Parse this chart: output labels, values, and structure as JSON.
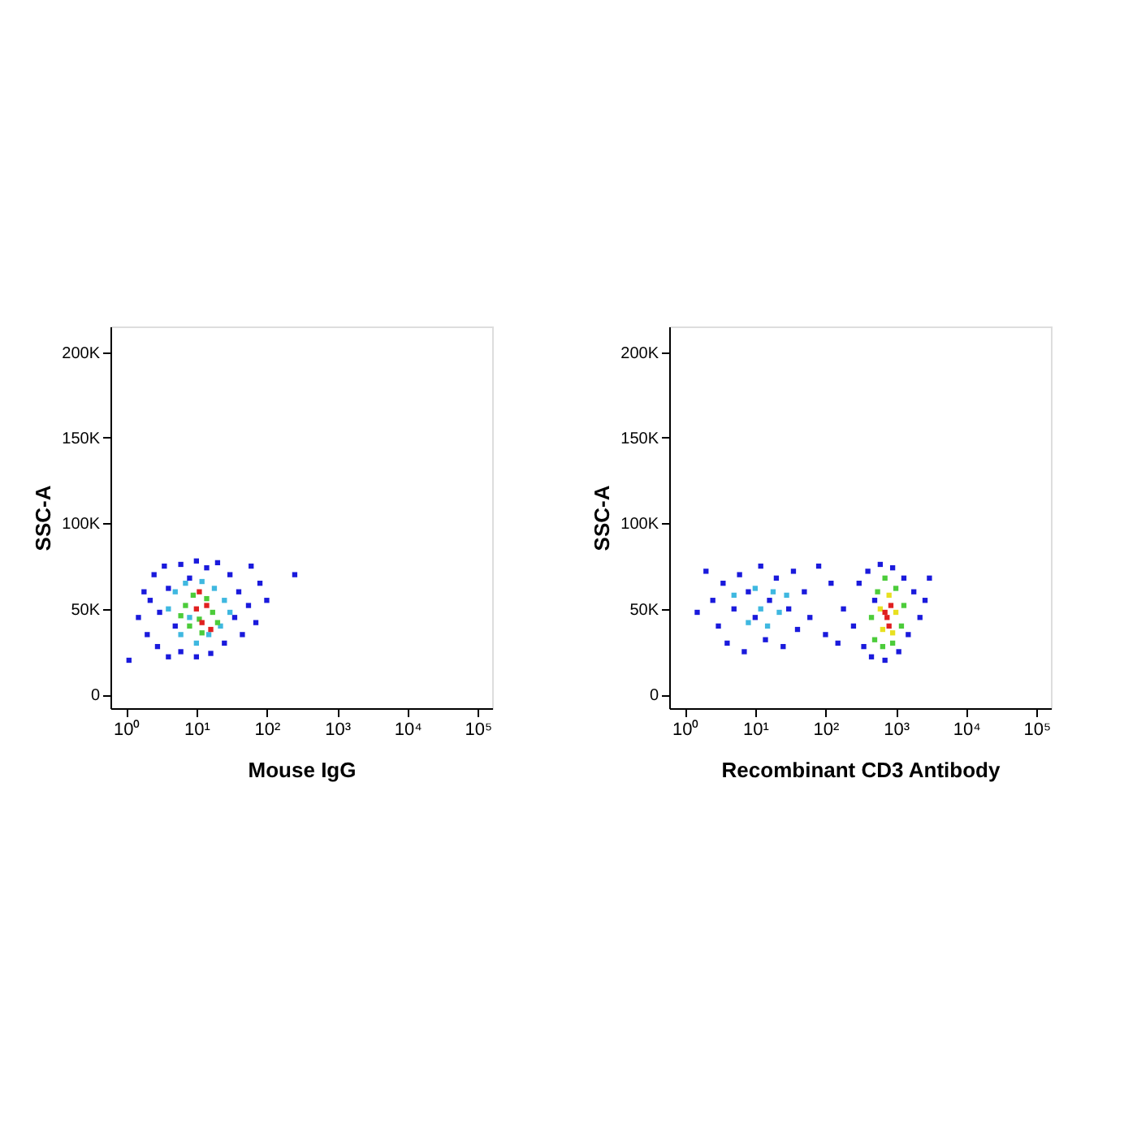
{
  "chart_data": [
    {
      "type": "scatter",
      "xlabel": "Mouse IgG",
      "ylabel": "SSC-A",
      "log": "x",
      "marker": "square",
      "grid": false,
      "xlim": [
        0.6,
        160000
      ],
      "ylim": [
        -8000,
        215000
      ],
      "xticks": [
        {
          "value": 1,
          "label": "10⁰"
        },
        {
          "value": 10,
          "label": "10¹"
        },
        {
          "value": 100,
          "label": "10²"
        },
        {
          "value": 1000,
          "label": "10³"
        },
        {
          "value": 10000,
          "label": "10⁴"
        },
        {
          "value": 100000,
          "label": "10⁵"
        }
      ],
      "yticks": [
        0,
        {
          "value": 50000,
          "label": "50K"
        },
        {
          "value": 100000,
          "label": "100K"
        },
        {
          "value": 150000,
          "label": "150K"
        },
        {
          "value": 200000,
          "label": "200K"
        }
      ],
      "series": [
        {
          "color": "#1a1adc",
          "x": [
            1.5,
            1.8,
            2,
            2.2,
            2.5,
            2.8,
            3,
            3.5,
            4,
            4,
            5,
            6,
            6,
            8,
            10,
            10,
            14,
            16,
            20,
            25,
            30,
            35,
            40,
            45,
            55,
            60,
            70,
            80,
            1.1,
            250,
            100
          ],
          "values": [
            45000,
            60000,
            35000,
            55000,
            70000,
            28000,
            48000,
            75000,
            22000,
            62000,
            40000,
            76000,
            25000,
            68000,
            78000,
            22000,
            74000,
            24000,
            77000,
            30000,
            70000,
            45000,
            60000,
            35000,
            52000,
            75000,
            42000,
            65000,
            20000,
            70000,
            55000
          ]
        },
        {
          "color": "#3fb8e0",
          "x": [
            4,
            5,
            6,
            7,
            8,
            10,
            12,
            15,
            18,
            22,
            25,
            30
          ],
          "values": [
            50000,
            60000,
            35000,
            65000,
            45000,
            30000,
            66000,
            35000,
            62000,
            40000,
            55000,
            48000
          ]
        },
        {
          "color": "#4ccc3a",
          "x": [
            7,
            8,
            9,
            11,
            12,
            14,
            17,
            20,
            6
          ],
          "values": [
            52000,
            40000,
            58000,
            44000,
            36000,
            56000,
            48000,
            42000,
            46000
          ]
        },
        {
          "color": "#e02020",
          "x": [
            10,
            12,
            14,
            16,
            11
          ],
          "values": [
            50000,
            42000,
            52000,
            38000,
            60000
          ]
        }
      ]
    },
    {
      "type": "scatter",
      "xlabel": "Recombinant CD3 Antibody",
      "ylabel": "SSC-A",
      "log": "x",
      "marker": "square",
      "grid": false,
      "xlim": [
        0.6,
        160000
      ],
      "ylim": [
        -8000,
        215000
      ],
      "xticks": [
        {
          "value": 1,
          "label": "10⁰"
        },
        {
          "value": 10,
          "label": "10¹"
        },
        {
          "value": 100,
          "label": "10²"
        },
        {
          "value": 1000,
          "label": "10³"
        },
        {
          "value": 10000,
          "label": "10⁴"
        },
        {
          "value": 100000,
          "label": "10⁵"
        }
      ],
      "yticks": [
        0,
        {
          "value": 50000,
          "label": "50K"
        },
        {
          "value": 100000,
          "label": "100K"
        },
        {
          "value": 150000,
          "label": "150K"
        },
        {
          "value": 200000,
          "label": "200K"
        }
      ],
      "series": [
        {
          "color": "#1a1adc",
          "x": [
            1.5,
            2,
            2.5,
            3,
            3.5,
            4,
            5,
            6,
            7,
            8,
            10,
            12,
            14,
            16,
            20,
            25,
            30,
            35,
            40,
            50,
            60,
            80,
            100,
            120,
            150,
            180,
            250,
            300,
            350,
            400,
            450,
            500,
            600,
            700,
            900,
            1100,
            1300,
            1500,
            1800,
            2200,
            2600,
            3000
          ],
          "values": [
            48000,
            72000,
            55000,
            40000,
            65000,
            30000,
            50000,
            70000,
            25000,
            60000,
            45000,
            75000,
            32000,
            55000,
            68000,
            28000,
            50000,
            72000,
            38000,
            60000,
            45000,
            75000,
            35000,
            65000,
            30000,
            50000,
            40000,
            65000,
            28000,
            72000,
            22000,
            55000,
            76000,
            20000,
            74000,
            25000,
            68000,
            35000,
            60000,
            45000,
            55000,
            68000
          ]
        },
        {
          "color": "#3fb8e0",
          "x": [
            5,
            8,
            10,
            12,
            15,
            18,
            22,
            28
          ],
          "values": [
            58000,
            42000,
            62000,
            50000,
            40000,
            60000,
            48000,
            58000
          ]
        },
        {
          "color": "#4ccc3a",
          "x": [
            450,
            500,
            550,
            650,
            700,
            900,
            1000,
            1200,
            1300
          ],
          "values": [
            45000,
            32000,
            60000,
            28000,
            68000,
            30000,
            62000,
            40000,
            52000
          ]
        },
        {
          "color": "#e8e020",
          "x": [
            600,
            650,
            800,
            900,
            1000
          ],
          "values": [
            50000,
            38000,
            58000,
            36000,
            48000
          ]
        },
        {
          "color": "#e02020",
          "x": [
            750,
            800,
            850,
            700
          ],
          "values": [
            45000,
            40000,
            52000,
            48000
          ]
        }
      ]
    }
  ]
}
